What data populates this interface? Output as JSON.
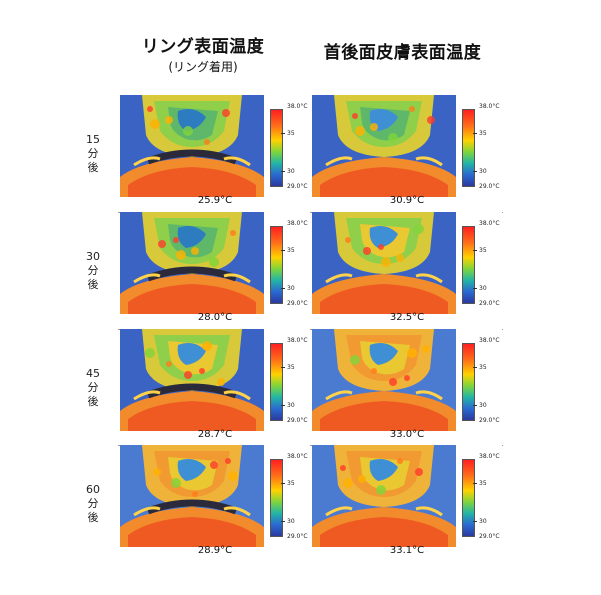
{
  "columns": [
    {
      "title": "リング表面温度",
      "subtitle": "(リング着用)"
    },
    {
      "title": "首後面皮膚表面温度",
      "subtitle": ""
    }
  ],
  "rows": [
    {
      "label_num": "15",
      "label_a": "分",
      "label_b": "後"
    },
    {
      "label_num": "30",
      "label_a": "分",
      "label_b": "後"
    },
    {
      "label_num": "45",
      "label_a": "分",
      "label_b": "後"
    },
    {
      "label_num": "60",
      "label_a": "分",
      "label_b": "後"
    }
  ],
  "temperatures": [
    [
      "25.9°C",
      "30.9°C"
    ],
    [
      "28.0°C",
      "32.5°C"
    ],
    [
      "28.7°C",
      "33.0°C"
    ],
    [
      "28.9°C",
      "33.1°C"
    ]
  ],
  "scale": {
    "max": "38.0°C",
    "mid": "35",
    "low": "30",
    "min": "29.0°C"
  }
}
